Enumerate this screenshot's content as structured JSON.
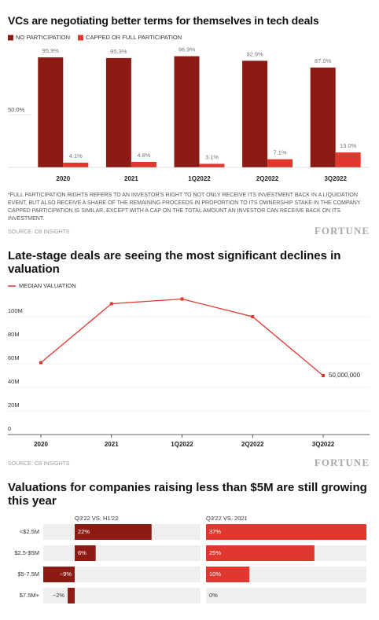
{
  "chart_data": [
    {
      "type": "bar",
      "title": "VCs are negotiating better terms for themselves in tech deals",
      "categories": [
        "2020",
        "2021",
        "1Q2022",
        "2Q2022",
        "3Q2022"
      ],
      "series": [
        {
          "name": "NO PARTICIPATION",
          "color": "#8c1b13",
          "values": [
            95.9,
            95.3,
            96.9,
            92.9,
            87.0
          ],
          "value_labels": [
            "95.9%",
            "95.3%",
            "96.9%",
            "92.9%",
            "87.0%"
          ]
        },
        {
          "name": "CAPPED OR FULL PARTICIPATION",
          "color": "#e0382f",
          "values": [
            4.1,
            4.8,
            3.1,
            7.1,
            13.0
          ],
          "value_labels": [
            "4.1%",
            "4.8%",
            "3.1%",
            "7.1%",
            "13.0%"
          ]
        }
      ],
      "ylim": [
        0,
        100
      ],
      "yticks": [
        {
          "value": 50,
          "label": "50.0%"
        }
      ],
      "note": "*FULL PARTICIPATION RIGHTS REFERS TO AN INVESTOR'S RIGHT TO NOT ONLY RECEIVE ITS INVESTMENT BACK IN A LIQUIDATION EVENT, BUT ALSO RECEIVE A SHARE OF THE REMAINING PROCEEDS IN PROPORTION TO ITS OWNERSHIP STAKE IN THE COMPANY. CAPPED PARTICIPATION IS SIMILAR, EXCEPT WITH A CAP ON THE TOTAL AMOUNT AN INVESTOR CAN RECEIVE BACK ON ITS INVESTMENT.",
      "source": "SOURCE: CB INSIGHTS",
      "logo": "FORTUNE"
    },
    {
      "type": "line",
      "title": "Late-stage deals are seeing the most significant declines in valuation",
      "categories": [
        "2020",
        "2021",
        "1Q2022",
        "2Q2022",
        "3Q2022"
      ],
      "series": [
        {
          "name": "MEDIAN VALUATION",
          "color": "#e0382f",
          "values": [
            61000000,
            111000000,
            115000000,
            100000000,
            50000000
          ],
          "value_labels": [
            null,
            null,
            null,
            null,
            "50,000,000"
          ]
        }
      ],
      "ylim": [
        0,
        120000000
      ],
      "yticks": [
        0,
        {
          "value": 20000000,
          "label": "20M"
        },
        {
          "value": 40000000,
          "label": "40M"
        },
        {
          "value": 60000000,
          "label": "60M"
        },
        {
          "value": 80000000,
          "label": "80M"
        },
        {
          "value": 100000000,
          "label": "100M"
        }
      ],
      "grid": true,
      "source": "SOURCE: CB INSIGHTS",
      "logo": "FORTUNE"
    },
    {
      "type": "barh",
      "title": "Valuations for companies raising less than $5M are still growing this year",
      "categories": [
        "<$2.5M",
        "$2.5-$5M",
        "$5-7.5M",
        "$7.5M+"
      ],
      "series": [
        {
          "name": "Q3'22 VS. H1'22",
          "color": "#8c1b13",
          "values": [
            22,
            6,
            -9,
            -2
          ],
          "value_labels": [
            "22%",
            "6%",
            "−9%",
            "−2%"
          ],
          "xlim": [
            -9,
            36
          ]
        },
        {
          "name": "Q3'22 VS. 2021",
          "color": "#e0382f",
          "values": [
            37,
            25,
            10,
            0
          ],
          "value_labels": [
            "37%",
            "25%",
            "10%",
            "0%"
          ],
          "xlim": [
            0,
            37
          ]
        }
      ]
    }
  ]
}
